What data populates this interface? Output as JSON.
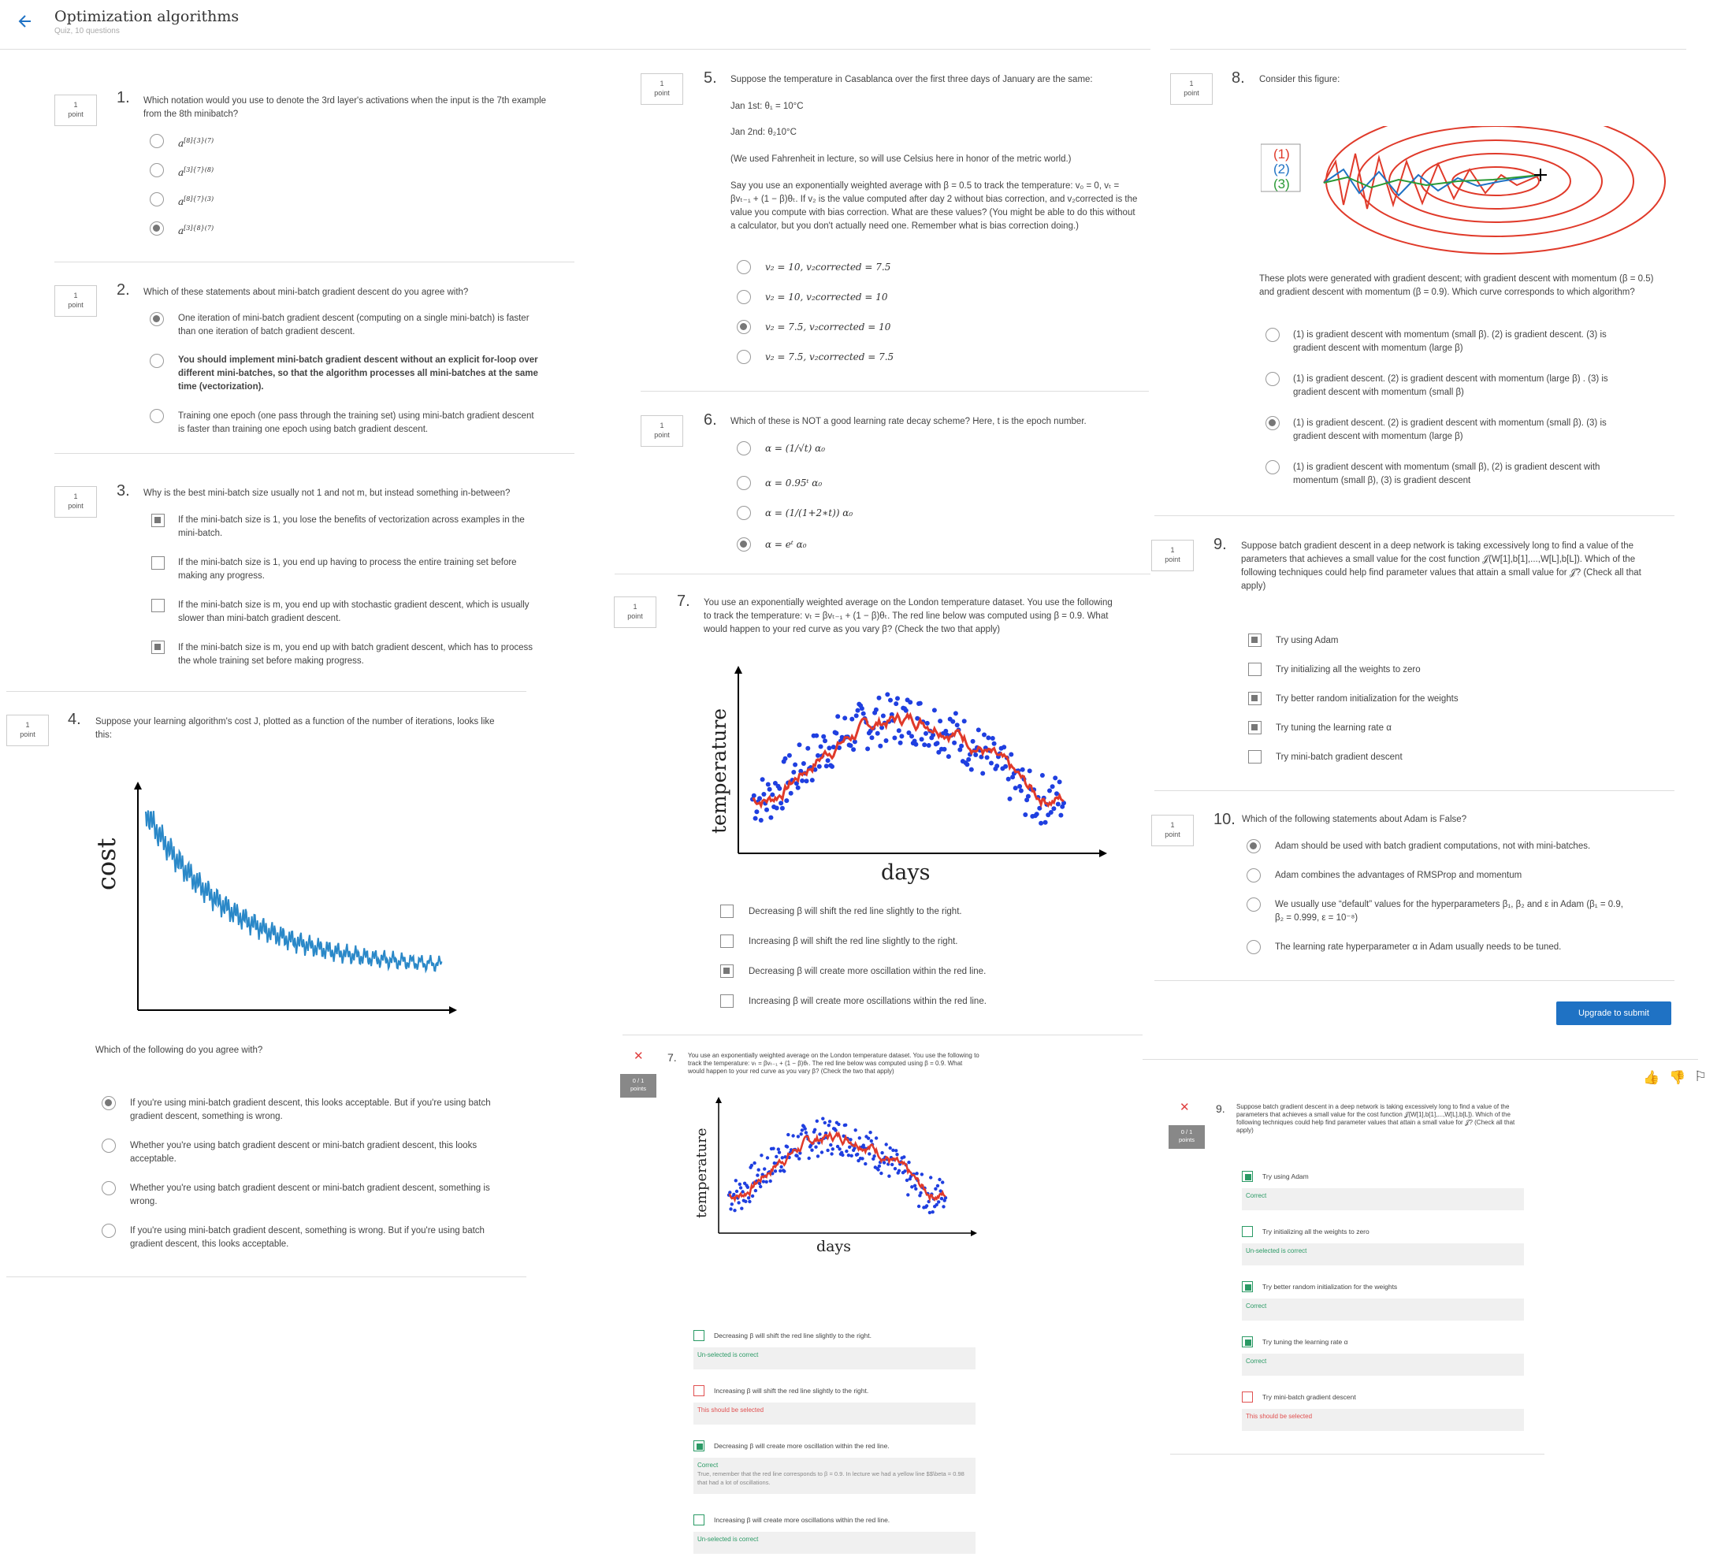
{
  "header": {
    "title": "Optimization algorithms",
    "subtitle": "Quiz, 10 questions"
  },
  "point_label": {
    "one": "1",
    "word": "point"
  },
  "q1": {
    "num": "1.",
    "text": "Which notation would you use to denote the 3rd layer's activations when the input is the 7th example from the 8th minibatch?",
    "options": [
      "a^[8]{3}(7)",
      "a^[3]{7}(8)",
      "a^[8]{7}(3)",
      "a^[3]{8}(7)"
    ]
  },
  "q2": {
    "num": "2.",
    "text": "Which of these statements about mini-batch gradient descent do you agree with?",
    "options": [
      "One iteration of mini-batch gradient descent (computing on a single mini-batch) is faster than one iteration of batch gradient descent.",
      "You should implement mini-batch gradient descent without an explicit for-loop over different mini-batches, so that the algorithm processes all mini-batches at the same time (vectorization).",
      "Training one epoch (one pass through the training set) using mini-batch gradient descent is faster than training one epoch using batch gradient descent."
    ]
  },
  "q3": {
    "num": "3.",
    "text": "Why is the best mini-batch size usually not 1 and not m, but instead something in-between?",
    "options": [
      "If the mini-batch size is 1, you lose the benefits of vectorization across examples in the mini-batch.",
      "If the mini-batch size is 1, you end up having to process the entire training set before making any progress.",
      "If the mini-batch size is m, you end up with stochastic gradient descent, which is usually slower than mini-batch gradient descent.",
      "If the mini-batch size is m, you end up with batch gradient descent, which has to process the whole training set before making progress."
    ]
  },
  "q4": {
    "num": "4.",
    "text": "Suppose your learning algorithm's cost J, plotted as a function of the number of iterations, looks like this:",
    "ylabel": "cost",
    "prompt": "Which of the following do you agree with?",
    "options": [
      "If you're using mini-batch gradient descent, this looks acceptable. But if you're using batch gradient descent, something is wrong.",
      "Whether you're using batch gradient descent or mini-batch gradient descent, this looks acceptable.",
      "Whether you're using batch gradient descent or mini-batch gradient descent, something is wrong.",
      "If you're using mini-batch gradient descent, something is wrong. But if you're using batch gradient descent, this looks acceptable."
    ]
  },
  "q5": {
    "num": "5.",
    "text": "Suppose the temperature in Casablanca over the first three days of January are the same:",
    "line1": "Jan 1st: θ₁ = 10°C",
    "line2": "Jan 2nd: θ₂10°C",
    "note": "(We used Fahrenheit in lecture, so will use Celsius here in honor of the metric world.)",
    "para": "Say you use an exponentially weighted average with β = 0.5 to track the temperature: v₀ = 0, vₜ = βvₜ₋₁ + (1 − β)θₜ. If v₂ is the value computed after day 2 without bias correction, and v₂corrected is the value you compute with bias correction. What are these values? (You might be able to do this without a calculator, but you don't actually need one. Remember what is bias correction doing.)",
    "options": [
      "v₂ = 10, v₂corrected = 7.5",
      "v₂ = 10, v₂corrected = 10",
      "v₂ = 7.5, v₂corrected = 10",
      "v₂ = 7.5, v₂corrected = 7.5"
    ]
  },
  "q6": {
    "num": "6.",
    "text": "Which of these is NOT a good learning rate decay scheme? Here, t is the epoch number.",
    "options": [
      "α = (1/√t) α₀",
      "α = 0.95ᵗ α₀",
      "α = (1/(1+2∗t)) α₀",
      "α = eᵗ α₀"
    ]
  },
  "q7": {
    "num": "7.",
    "text": "You use an exponentially weighted average on the London temperature dataset. You use the following to track the temperature: vₜ = βvₜ₋₁ + (1 − β)θₜ. The red line below was computed using β = 0.9. What would happen to your red curve as you vary β? (Check the two that apply)",
    "xlabel": "days",
    "ylabel": "temperature",
    "options": [
      "Decreasing β will shift the red line slightly to the right.",
      "Increasing β will shift the red line slightly to the right.",
      "Decreasing β will create more oscillation within the red line.",
      "Increasing β will create more oscillations within the red line."
    ]
  },
  "q8": {
    "num": "8.",
    "text": "Consider this figure:",
    "labels": [
      "(1)",
      "(2)",
      "(3)"
    ],
    "para": "These plots were generated with gradient descent; with gradient descent with momentum (β = 0.5) and gradient descent with momentum (β = 0.9). Which curve corresponds to which algorithm?",
    "options": [
      "(1) is gradient descent with momentum (small β). (2) is gradient descent. (3) is gradient descent with momentum (large β)",
      "(1) is gradient descent. (2) is gradient descent with momentum (large β) . (3) is gradient descent with momentum (small β)",
      "(1) is gradient descent. (2) is gradient descent with momentum (small β). (3) is gradient descent with momentum (large β)",
      "(1) is gradient descent with momentum (small β), (2) is gradient descent with momentum (small β), (3) is gradient descent"
    ]
  },
  "q9": {
    "num": "9.",
    "text": "Suppose batch gradient descent in a deep network is taking excessively long to find a value of the parameters that achieves a small value for the cost function 𝒥(W[1],b[1],...,W[L],b[L]). Which of the following techniques could help find parameter values that attain a small value for 𝒥? (Check all that apply)",
    "options": [
      "Try using Adam",
      "Try initializing all the weights to zero",
      "Try better random initialization for the weights",
      "Try tuning the learning rate α",
      "Try mini-batch gradient descent"
    ]
  },
  "q10": {
    "num": "10.",
    "text": "Which of the following statements about Adam is False?",
    "options": [
      "Adam should be used with batch gradient computations, not with mini-batches.",
      "Adam combines the advantages of RMSProp and momentum",
      "We usually use “default” values for the hyperparameters β₁, β₂ and ε in Adam (β₁ = 0.9, β₂ = 0.999, ε = 10⁻⁸)",
      "The learning rate hyperparameter α in Adam usually needs to be tuned."
    ]
  },
  "submit": {
    "label": "Upgrade to submit"
  },
  "review7": {
    "score": "0 / 1",
    "score_word": "points",
    "num": "7.",
    "text": "You use an exponentially weighted average on the London temperature dataset. You use the following to track the temperature: vₜ = βvₜ₋₁ + (1 − β)θₜ. The red line below was computed using β = 0.9. What would happen to your red curve as you vary β? (Check the two that apply)",
    "xlabel": "days",
    "ylabel": "temperature",
    "items": [
      {
        "label": "Decreasing β will shift the red line slightly to the right.",
        "feedback": "Un-selected is correct",
        "extra": ""
      },
      {
        "label": "Increasing β will shift the red line slightly to the right.",
        "feedback": "This should be selected",
        "extra": ""
      },
      {
        "label": "Decreasing β will create more oscillation within the red line.",
        "feedback": "Correct",
        "extra": "True, remember that the red line corresponds to β = 0.9. In lecture we had a yellow line $$\\beta = 0.98 that had a lot of oscillations."
      },
      {
        "label": "Increasing β will create more oscillations within the red line.",
        "feedback": "Un-selected is correct",
        "extra": ""
      }
    ]
  },
  "review9": {
    "score": "0 / 1",
    "score_word": "points",
    "num": "9.",
    "text": "Suppose batch gradient descent in a deep network is taking excessively long to find a value of the parameters that achieves a small value for the cost function 𝒥(W[1],b[1],...,W[L],b[L]). Which of the following techniques could help find parameter values that attain a small value for 𝒥? (Check all that apply)",
    "items": [
      {
        "label": "Try using Adam",
        "feedback": "Correct"
      },
      {
        "label": "Try initializing all the weights to zero",
        "feedback": "Un-selected is correct"
      },
      {
        "label": "Try better random initialization for the weights",
        "feedback": "Correct"
      },
      {
        "label": "Try tuning the learning rate α",
        "feedback": "Correct"
      },
      {
        "label": "Try mini-batch gradient descent",
        "feedback": "This should be selected"
      }
    ]
  },
  "colors": {
    "accent": "#1f72c4",
    "correct": "#2a9a65",
    "wrong": "#e05050",
    "scatter": "#1f3fe0",
    "trend": "#e03a2a"
  }
}
